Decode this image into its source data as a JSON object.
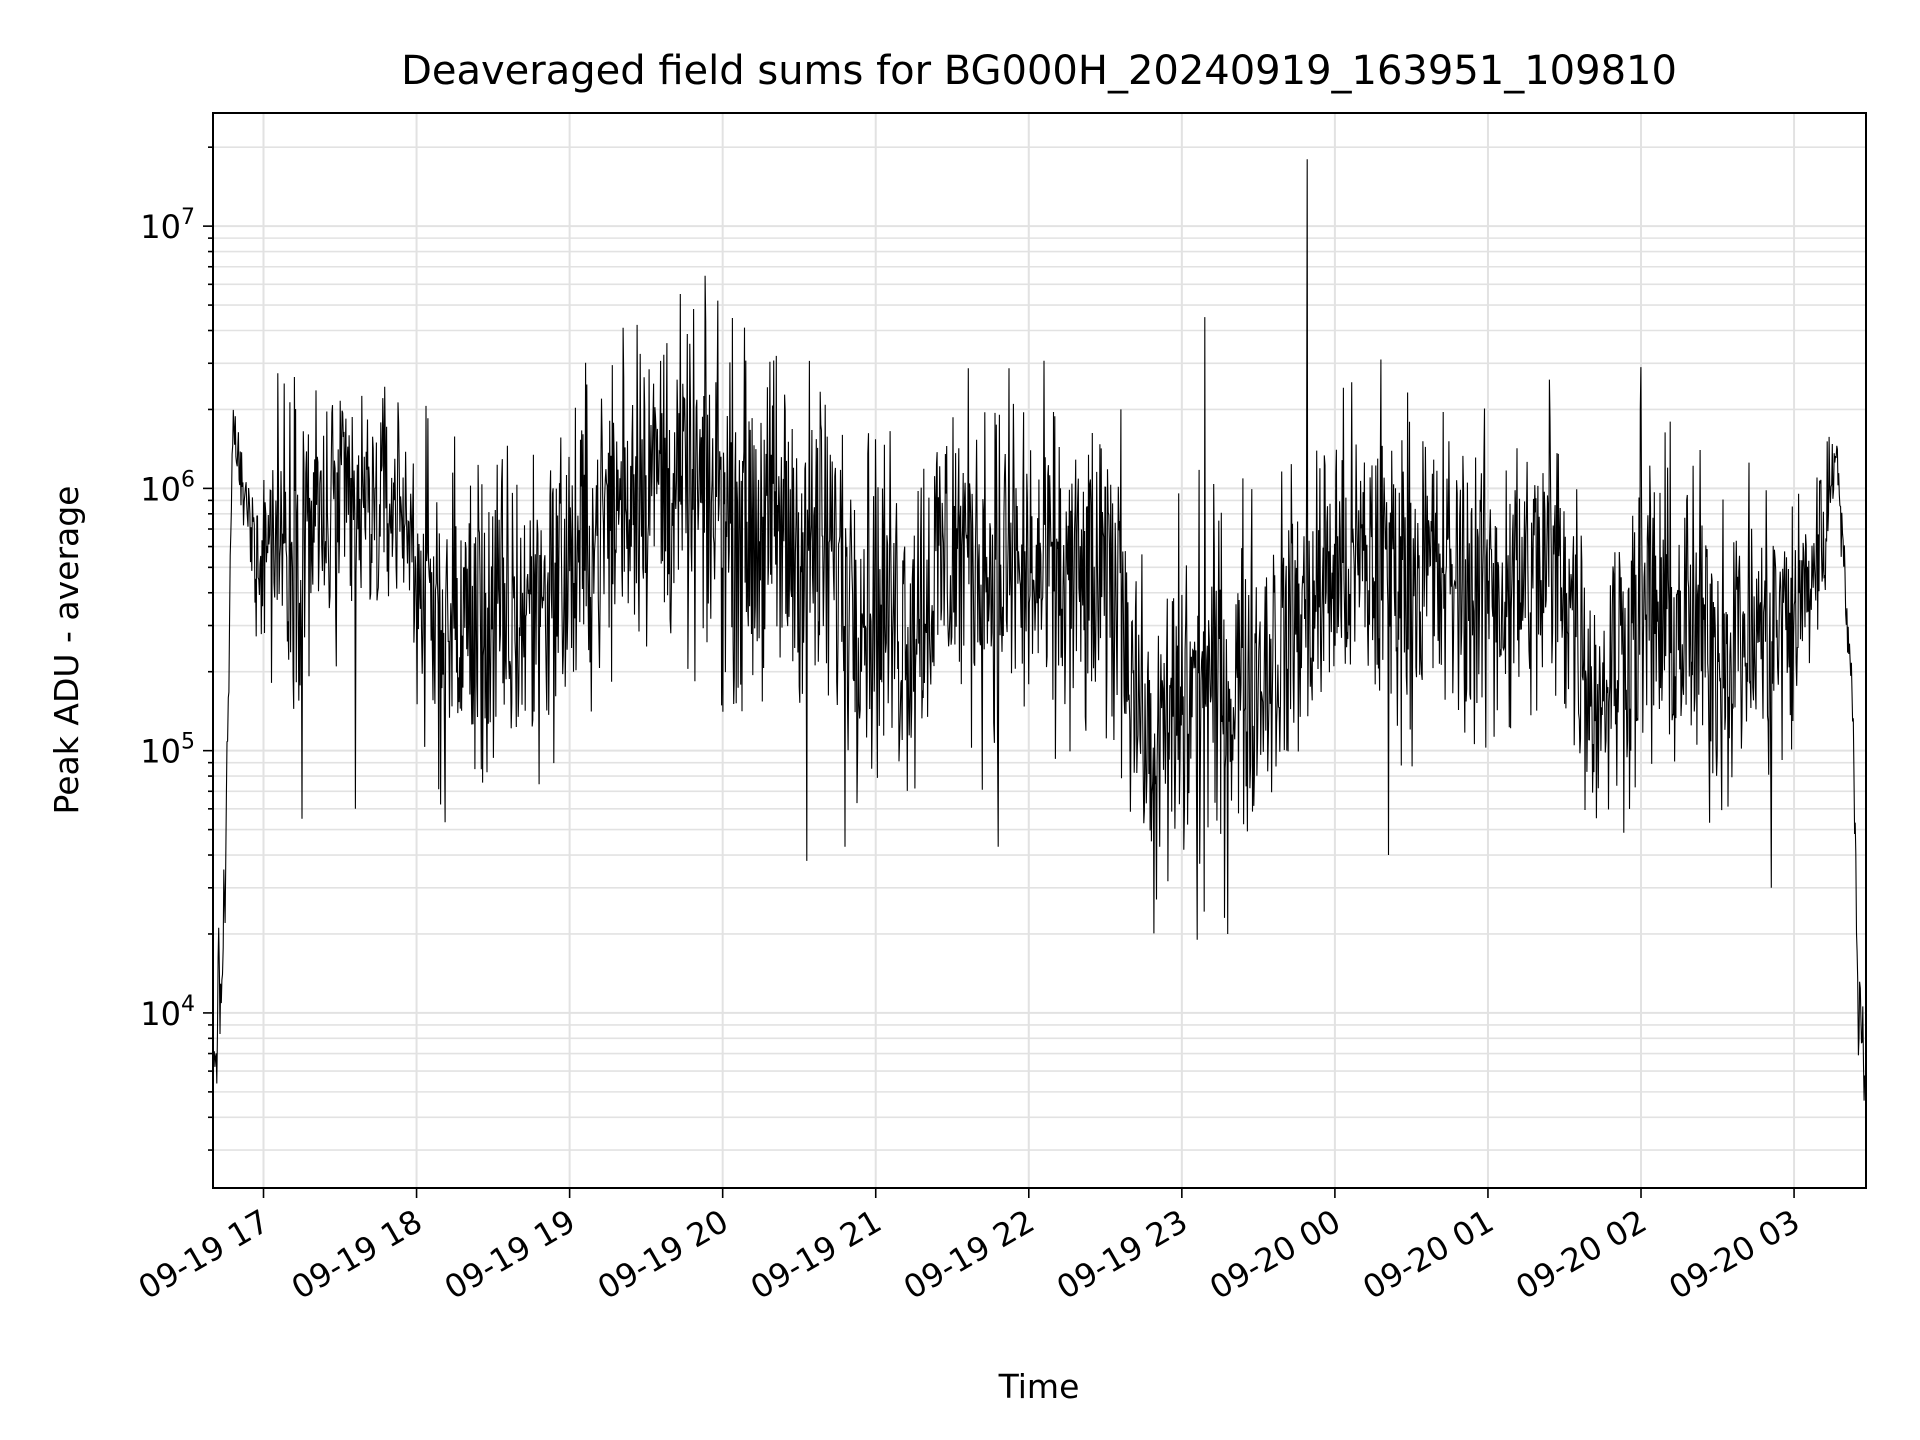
{
  "chart_data": {
    "type": "line",
    "title": "Deaveraged field sums for BG000H_20240919_163951_109810",
    "xlabel": "Time",
    "ylabel": "Peak ADU - average",
    "yscale": "log",
    "ylim": [
      2150,
      27000000
    ],
    "xlim_hours": [
      16.67,
      27.47
    ],
    "x_ticks": [
      {
        "label": "09-19 17",
        "hour": 17
      },
      {
        "label": "09-19 18",
        "hour": 18
      },
      {
        "label": "09-19 19",
        "hour": 19
      },
      {
        "label": "09-19 20",
        "hour": 20
      },
      {
        "label": "09-19 21",
        "hour": 21
      },
      {
        "label": "09-19 22",
        "hour": 22
      },
      {
        "label": "09-19 23",
        "hour": 23
      },
      {
        "label": "09-20 00",
        "hour": 24
      },
      {
        "label": "09-20 01",
        "hour": 25
      },
      {
        "label": "09-20 02",
        "hour": 26
      },
      {
        "label": "09-20 03",
        "hour": 27
      }
    ],
    "y_ticks": [
      {
        "base": "10",
        "exp": "4",
        "value": 10000
      },
      {
        "base": "10",
        "exp": "5",
        "value": 100000
      },
      {
        "base": "10",
        "exp": "6",
        "value": 1000000
      },
      {
        "base": "10",
        "exp": "7",
        "value": 10000000
      }
    ],
    "grid": true,
    "series": [
      {
        "name": "field sums",
        "color": "#000000",
        "envelope": [
          {
            "t": 16.67,
            "base": 6000,
            "amp": 0.15
          },
          {
            "t": 16.72,
            "base": 12000,
            "amp": 0.3
          },
          {
            "t": 16.75,
            "base": 30000,
            "amp": 0.2
          },
          {
            "t": 16.8,
            "base": 1800000,
            "amp": 0.08
          },
          {
            "t": 16.87,
            "base": 900000,
            "amp": 0.15
          },
          {
            "t": 16.95,
            "base": 600000,
            "amp": 0.3
          },
          {
            "t": 17.1,
            "base": 700000,
            "amp": 0.55
          },
          {
            "t": 17.5,
            "base": 750000,
            "amp": 0.5
          },
          {
            "t": 17.9,
            "base": 900000,
            "amp": 0.35
          },
          {
            "t": 18.1,
            "base": 300000,
            "amp": 0.6
          },
          {
            "t": 18.6,
            "base": 300000,
            "amp": 0.6
          },
          {
            "t": 19.0,
            "base": 500000,
            "amp": 0.55
          },
          {
            "t": 19.5,
            "base": 1200000,
            "amp": 0.55
          },
          {
            "t": 20.0,
            "base": 800000,
            "amp": 0.6
          },
          {
            "t": 20.6,
            "base": 600000,
            "amp": 0.6
          },
          {
            "t": 21.2,
            "base": 300000,
            "amp": 0.6
          },
          {
            "t": 21.5,
            "base": 600000,
            "amp": 0.6
          },
          {
            "t": 22.0,
            "base": 450000,
            "amp": 0.6
          },
          {
            "t": 22.6,
            "base": 400000,
            "amp": 0.55
          },
          {
            "t": 22.8,
            "base": 80000,
            "amp": 0.45
          },
          {
            "t": 23.0,
            "base": 150000,
            "amp": 0.7
          },
          {
            "t": 23.5,
            "base": 200000,
            "amp": 0.55
          },
          {
            "t": 24.0,
            "base": 500000,
            "amp": 0.55
          },
          {
            "t": 24.5,
            "base": 500000,
            "amp": 0.55
          },
          {
            "t": 25.0,
            "base": 400000,
            "amp": 0.55
          },
          {
            "t": 25.5,
            "base": 500000,
            "amp": 0.55
          },
          {
            "t": 25.7,
            "base": 150000,
            "amp": 0.45
          },
          {
            "t": 26.0,
            "base": 350000,
            "amp": 0.6
          },
          {
            "t": 26.5,
            "base": 250000,
            "amp": 0.55
          },
          {
            "t": 27.0,
            "base": 300000,
            "amp": 0.5
          },
          {
            "t": 27.2,
            "base": 700000,
            "amp": 0.3
          },
          {
            "t": 27.28,
            "base": 1500000,
            "amp": 0.1
          },
          {
            "t": 27.38,
            "base": 150000,
            "amp": 0.15
          },
          {
            "t": 27.42,
            "base": 12000,
            "amp": 0.2
          },
          {
            "t": 27.47,
            "base": 5000,
            "amp": 0.1
          }
        ],
        "spikes": [
          {
            "t": 23.82,
            "value": 18000000
          },
          {
            "t": 23.15,
            "value": 4500000
          },
          {
            "t": 19.97,
            "value": 5200000
          },
          {
            "t": 19.44,
            "value": 4200000
          },
          {
            "t": 19.35,
            "value": 4100000
          },
          {
            "t": 26.0,
            "value": 2900000
          },
          {
            "t": 22.6,
            "value": 2000000
          },
          {
            "t": 24.3,
            "value": 3100000
          },
          {
            "t": 20.35,
            "value": 3200000
          },
          {
            "t": 21.9,
            "value": 2100000
          },
          {
            "t": 25.4,
            "value": 2600000
          },
          {
            "t": 20.55,
            "value": 38000
          },
          {
            "t": 20.8,
            "value": 43000
          },
          {
            "t": 23.1,
            "value": 19000
          },
          {
            "t": 23.3,
            "value": 20000
          },
          {
            "t": 26.85,
            "value": 30000
          },
          {
            "t": 21.8,
            "value": 43000
          },
          {
            "t": 24.35,
            "value": 40000
          },
          {
            "t": 17.25,
            "value": 55000
          },
          {
            "t": 17.6,
            "value": 60000
          }
        ]
      }
    ]
  }
}
